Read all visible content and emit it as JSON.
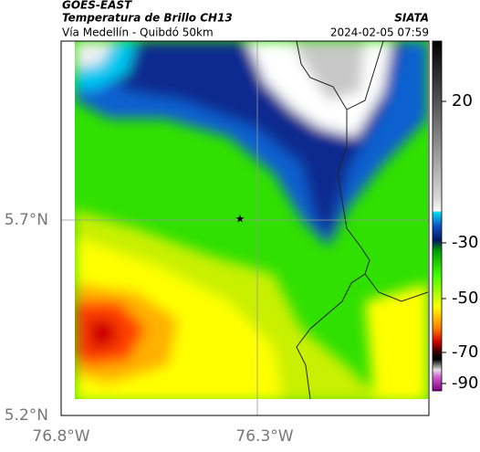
{
  "header": {
    "source": "GOES-EAST",
    "title": "Temperatura de Brillo CH13",
    "subtitle": "Vía Medellín - Quibdó 50km",
    "org": "SIATA",
    "datetime": "2024-02-05 07:59"
  },
  "axes": {
    "lat_labels": [
      "5.7°N",
      "5.2°N"
    ],
    "lon_labels": [
      "76.8°W",
      "76.3°W"
    ]
  },
  "colorbar": {
    "ticks": [
      20,
      -30,
      -50,
      -70,
      -90
    ]
  }
}
